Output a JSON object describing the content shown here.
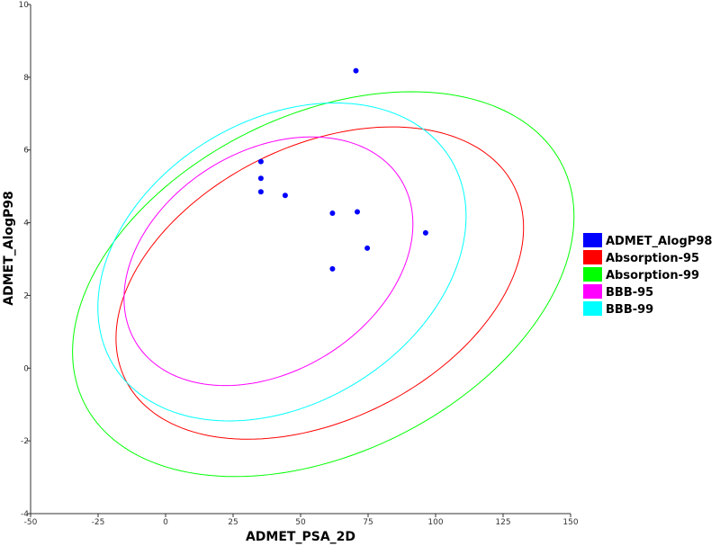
{
  "chart_data": {
    "type": "scatter",
    "xlabel": "ADMET_PSA_2D",
    "ylabel": "ADMET_AlogP98",
    "xlim": [
      -50,
      150
    ],
    "ylim": [
      -4,
      10
    ],
    "xticks": [
      -50,
      -25,
      0,
      25,
      50,
      75,
      100,
      125,
      150
    ],
    "yticks": [
      -4,
      -2,
      0,
      2,
      4,
      6,
      8,
      10
    ],
    "grid": false,
    "legend_position": "right",
    "series": [
      {
        "name": "ADMET_AlogP98",
        "kind": "points",
        "color": "#0000ff",
        "points": [
          {
            "x": 35.3,
            "y": 5.68
          },
          {
            "x": 35.3,
            "y": 5.22
          },
          {
            "x": 35.3,
            "y": 4.85
          },
          {
            "x": 44.3,
            "y": 4.75
          },
          {
            "x": 61.8,
            "y": 4.26
          },
          {
            "x": 71.0,
            "y": 4.3
          },
          {
            "x": 70.5,
            "y": 8.18
          },
          {
            "x": 74.7,
            "y": 3.3
          },
          {
            "x": 96.3,
            "y": 3.72
          },
          {
            "x": 61.8,
            "y": 2.73
          }
        ]
      },
      {
        "name": "Absorption-95",
        "kind": "ellipse",
        "color": "#ff0000",
        "center": [
          57.1,
          2.34
        ],
        "semi_major": 80.4,
        "semi_minor": 3.77,
        "angle_deg": -26.4
      },
      {
        "name": "Absorption-99",
        "kind": "ellipse",
        "color": "#00ff00",
        "center": [
          58.4,
          2.31
        ],
        "semi_major": 98.9,
        "semi_minor": 4.65,
        "angle_deg": -26.4
      },
      {
        "name": "BBB-95",
        "kind": "ellipse",
        "color": "#ff00ff",
        "center": [
          38.1,
          2.94
        ],
        "semi_major": 57.6,
        "semi_minor": 3.03,
        "angle_deg": -31.7
      },
      {
        "name": "BBB-99",
        "kind": "ellipse",
        "color": "#00ffff",
        "center": [
          43.1,
          2.92
        ],
        "semi_major": 73.2,
        "semi_minor": 3.9,
        "angle_deg": -31.5
      }
    ]
  }
}
